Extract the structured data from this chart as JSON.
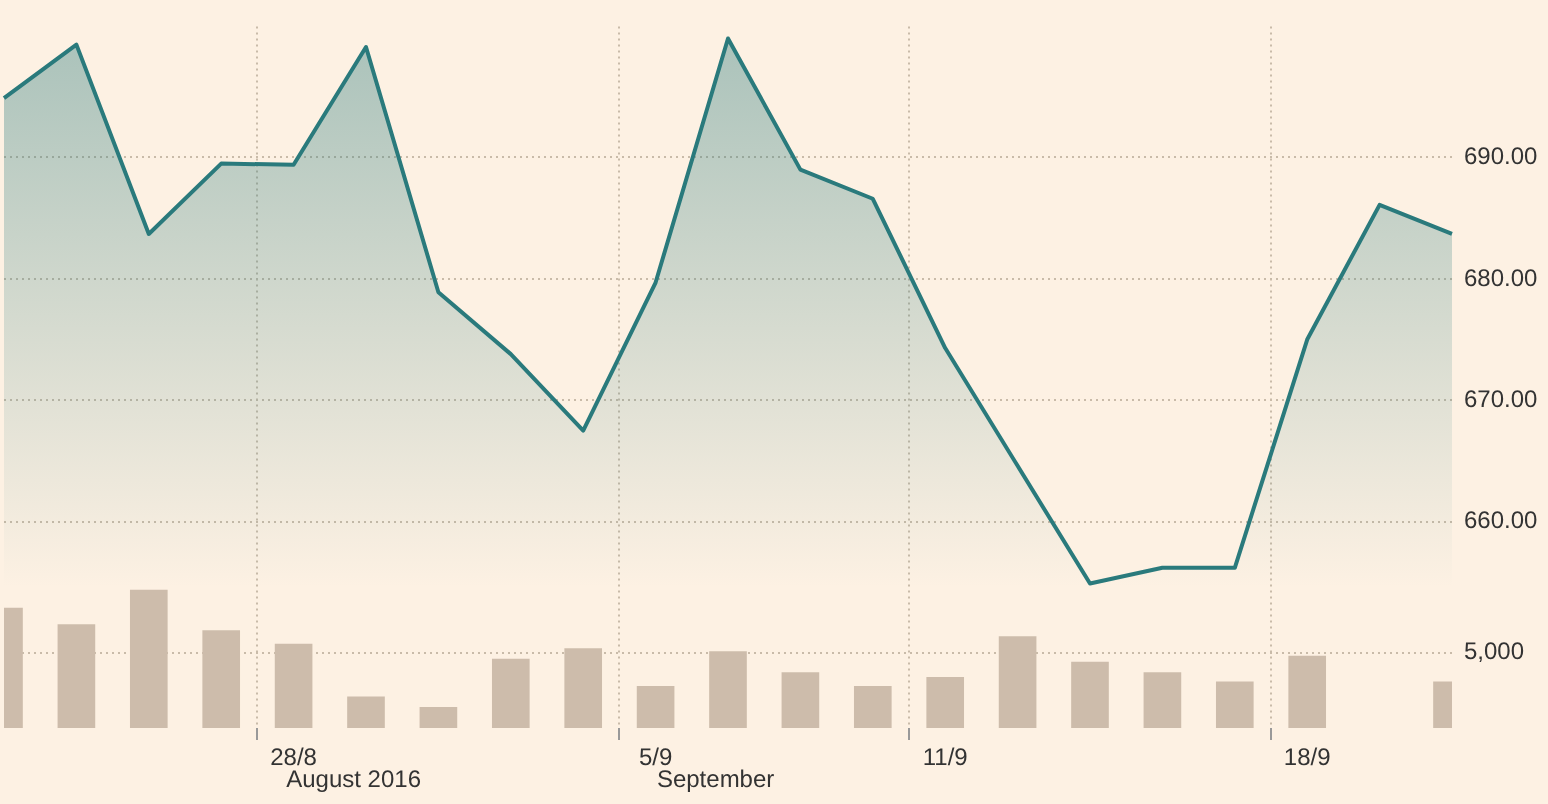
{
  "chart_data": {
    "type": "area",
    "categories": [
      null,
      null,
      null,
      null,
      "28/8",
      null,
      null,
      null,
      null,
      "5/9",
      null,
      null,
      null,
      "11/9",
      null,
      null,
      null,
      null,
      "18/9",
      null,
      null
    ],
    "series": [
      {
        "color": "#2a7a7c",
        "values": [
          694.9,
          699.3,
          683.7,
          689.5,
          689.4,
          699.1,
          678.9,
          673.8,
          667.5,
          679.7,
          699.8,
          689.0,
          686.6,
          674.3,
          664.6,
          654.9,
          656.2,
          656.2,
          675.0,
          686.1,
          683.7
        ]
      },
      {
        "type": "bar",
        "axis": "y2",
        "color": "#cdbcab",
        "values": [
          8000,
          6900,
          9200,
          6500,
          5600,
          2100,
          1400,
          4600,
          5300,
          2800,
          5100,
          3700,
          2800,
          3400,
          6100,
          4400,
          3700,
          3100,
          4800,
          null,
          3100
        ]
      }
    ],
    "ylim": [
      643,
      700.8
    ],
    "yticks": [
      {
        "value": 660,
        "label": "660.00"
      },
      {
        "value": 670,
        "label": "670.00"
      },
      {
        "value": 680,
        "label": "680.00"
      },
      {
        "value": 690,
        "label": "690.00"
      }
    ],
    "y2lim": [
      0,
      46667
    ],
    "y2ticks": [
      {
        "value": 5000,
        "label": "5,000"
      }
    ],
    "annotations": [
      "August 2016",
      "September"
    ],
    "grid": true,
    "legend": false
  }
}
